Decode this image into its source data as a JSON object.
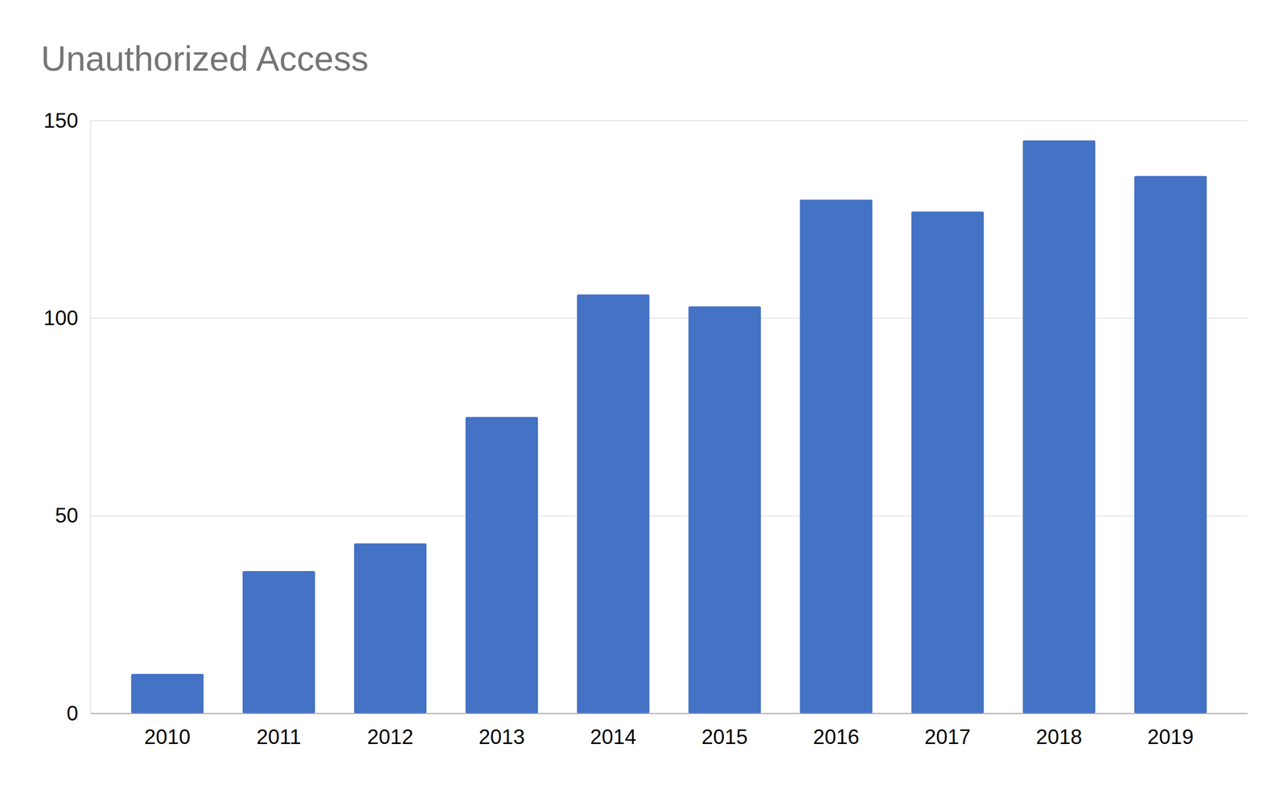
{
  "chart_data": {
    "type": "bar",
    "title": "Unauthorized Access",
    "categories": [
      "2010",
      "2011",
      "2012",
      "2013",
      "2014",
      "2015",
      "2016",
      "2017",
      "2018",
      "2019"
    ],
    "values": [
      10,
      36,
      43,
      75,
      106,
      103,
      130,
      127,
      145,
      136
    ],
    "color": "#4472c4",
    "ylim": [
      0,
      150
    ],
    "yticks": [
      0,
      50,
      100,
      150
    ],
    "grid": true
  }
}
